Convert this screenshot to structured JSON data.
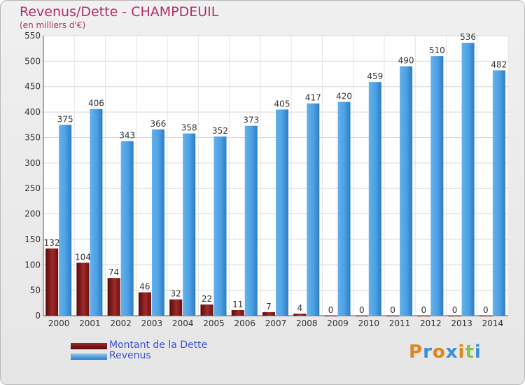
{
  "title": "Revenus/Dette - CHAMPDEUIL",
  "subtitle": "(en milliers d'€)",
  "logo": "Proxiti",
  "colors": {
    "title": "#b0306a",
    "debt_dark": "#5a0a0a",
    "debt_light": "#a02a2a",
    "revenue_light": "#63b2ec",
    "revenue_dark": "#2a7dc6",
    "legend_text": "#3d4fd6"
  },
  "chart_data": {
    "type": "bar",
    "title": "Revenus/Dette - CHAMPDEUIL",
    "ylabel": "(en milliers d'€)",
    "categories": [
      "2000",
      "2001",
      "2002",
      "2003",
      "2004",
      "2005",
      "2006",
      "2007",
      "2008",
      "2009",
      "2010",
      "2011",
      "2012",
      "2013",
      "2014"
    ],
    "series": [
      {
        "name": "Montant de la Dette",
        "values": [
          132,
          104,
          74,
          46,
          32,
          22,
          11,
          7,
          4,
          0,
          0,
          0,
          0,
          0,
          0
        ]
      },
      {
        "name": "Revenus",
        "values": [
          375,
          406,
          343,
          366,
          358,
          352,
          373,
          405,
          417,
          420,
          459,
          490,
          510,
          536,
          482
        ]
      }
    ],
    "ylim": [
      0,
      550
    ],
    "yticks": [
      0,
      50,
      100,
      150,
      200,
      250,
      300,
      350,
      400,
      450,
      500,
      550
    ],
    "grid": true,
    "legend": "bottom-left"
  }
}
